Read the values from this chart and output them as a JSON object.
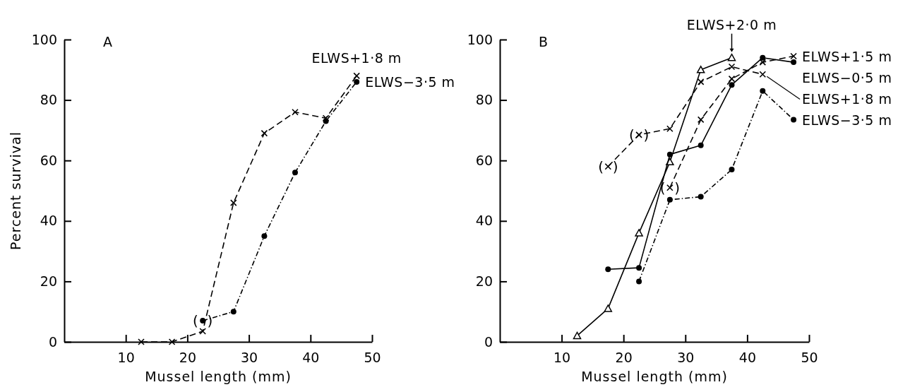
{
  "chart_data": [
    {
      "type": "line",
      "title": "A",
      "xlabel": "Mussel length (mm)",
      "ylabel": "Percent survival",
      "xlim": [
        0,
        50
      ],
      "xticks": [
        10,
        20,
        30,
        40,
        50
      ],
      "ylim": [
        0,
        100
      ],
      "yticks": [
        0,
        20,
        40,
        60,
        80,
        100
      ],
      "grid": false,
      "series": [
        {
          "name": "ELWS+1·8 m",
          "color": "#000000",
          "marker": "cross",
          "line_style": "dashed",
          "x": [
            12.5,
            17.5,
            22.5,
            27.5,
            32.5,
            37.5,
            42.5,
            47.5
          ],
          "values": [
            0,
            0,
            3.5,
            46,
            69,
            76,
            74,
            88
          ]
        },
        {
          "name": "ELWS−3·5 m",
          "color": "#000000",
          "marker": "circle",
          "line_style": "dotted",
          "x": [
            22.5,
            27.5,
            32.5,
            37.5,
            42.5,
            47.5
          ],
          "values": [
            7,
            10,
            35,
            56,
            73,
            86
          ]
        }
      ],
      "annotations": [
        {
          "text": "(  )",
          "x": 22.5,
          "y": 7
        }
      ]
    },
    {
      "type": "line",
      "title": "B",
      "xlabel": "Mussel length (mm)",
      "xlim": [
        0,
        50
      ],
      "xticks": [
        10,
        20,
        30,
        40,
        50
      ],
      "ylim": [
        0,
        100
      ],
      "yticks": [
        0,
        20,
        40,
        60,
        80,
        100
      ],
      "grid": false,
      "series": [
        {
          "name": "ELWS+2·0 m",
          "color": "#000000",
          "marker": "triangle",
          "line_style": "solid",
          "x": [
            12.5,
            17.5,
            22.5,
            27.5,
            32.5,
            37.5
          ],
          "values": [
            2,
            11,
            36,
            59.5,
            90,
            94
          ]
        },
        {
          "name": "ELWS+1·5 m",
          "color": "#000000",
          "marker": "cross",
          "line_style": "dashed",
          "x": [
            27.5,
            32.5,
            37.5,
            42.5,
            47.5
          ],
          "values": [
            51,
            73.5,
            87,
            92.5,
            94.5
          ]
        },
        {
          "name": "ELWS−0·5 m",
          "color": "#000000",
          "marker": "circle",
          "line_style": "solid",
          "x": [
            17.5,
            22.5,
            27.5,
            32.5,
            37.5,
            42.5,
            47.5
          ],
          "values": [
            24,
            24.5,
            62,
            65,
            85,
            94,
            92.5
          ]
        },
        {
          "name": "ELWS+1·8 m",
          "color": "#000000",
          "marker": "cross",
          "line_style": "dashed",
          "x": [
            17.5,
            22.5,
            27.5,
            32.5,
            37.5,
            42.5
          ],
          "values": [
            58,
            68.5,
            70.5,
            86,
            91,
            88.5
          ]
        },
        {
          "name": "ELWS−3·5 m",
          "color": "#000000",
          "marker": "circle",
          "line_style": "dotted",
          "x": [
            22.5,
            27.5,
            32.5,
            37.5,
            42.5,
            47.5
          ],
          "values": [
            20,
            47,
            48,
            57,
            83,
            73.5
          ]
        }
      ],
      "annotations": [
        {
          "text": "(  )",
          "x": 17.5,
          "y": 58
        },
        {
          "text": "(  )",
          "x": 22.5,
          "y": 68.5
        },
        {
          "text": "(  )",
          "x": 27.5,
          "y": 51
        }
      ]
    }
  ]
}
